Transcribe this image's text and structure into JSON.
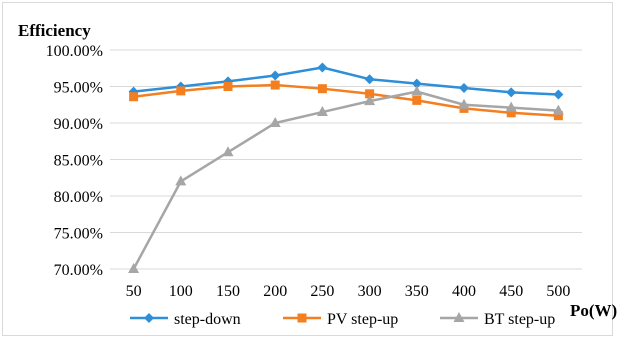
{
  "chart_data": {
    "type": "line",
    "ylabel": "Efficiency",
    "xlabel": "Po(W)",
    "categories": [
      "50",
      "100",
      "150",
      "200",
      "250",
      "300",
      "350",
      "400",
      "450",
      "500"
    ],
    "ylim": [
      0.7,
      1.0
    ],
    "yticks": [
      1.0,
      0.95,
      0.9,
      0.85,
      0.8,
      0.75,
      0.7
    ],
    "ytick_labels": [
      "100.00%",
      "95.00%",
      "90.00%",
      "85.00%",
      "80.00%",
      "75.00%",
      "70.00%"
    ],
    "grid": "horizontal",
    "legend_position": "bottom",
    "series": [
      {
        "name": "step-down",
        "color": "#2e8fd8",
        "marker": "diamond",
        "values": [
          0.943,
          0.95,
          0.957,
          0.965,
          0.976,
          0.96,
          0.954,
          0.948,
          0.942,
          0.939
        ]
      },
      {
        "name": "PV step-up",
        "color": "#f47f20",
        "marker": "square",
        "values": [
          0.936,
          0.944,
          0.95,
          0.952,
          0.947,
          0.94,
          0.931,
          0.92,
          0.914,
          0.91
        ]
      },
      {
        "name": "BT step-up",
        "color": "#a6a6a6",
        "marker": "triangle",
        "values": [
          0.7,
          0.82,
          0.86,
          0.9,
          0.915,
          0.93,
          0.943,
          0.925,
          0.921,
          0.917
        ]
      }
    ]
  }
}
